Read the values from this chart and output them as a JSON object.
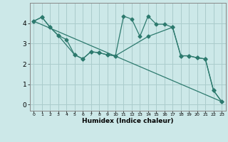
{
  "xlabel": "Humidex (Indice chaleur)",
  "background_color": "#cce8e8",
  "grid_color": "#aacccc",
  "line_color": "#2d7a6e",
  "xlim": [
    -0.5,
    23.5
  ],
  "ylim": [
    -0.3,
    5.0
  ],
  "xticks": [
    0,
    1,
    2,
    3,
    4,
    5,
    6,
    7,
    8,
    9,
    10,
    11,
    12,
    13,
    14,
    15,
    16,
    17,
    18,
    19,
    20,
    21,
    22,
    23
  ],
  "yticks": [
    0,
    1,
    2,
    3,
    4
  ],
  "series1_x": [
    0,
    1,
    2,
    3,
    4,
    5,
    6,
    7,
    8,
    9,
    10,
    11,
    12,
    13,
    14,
    15,
    16,
    17,
    18,
    19,
    20,
    21,
    22,
    23
  ],
  "series1_y": [
    4.1,
    4.3,
    3.8,
    3.4,
    3.2,
    2.45,
    2.25,
    2.6,
    2.55,
    2.45,
    2.4,
    4.35,
    4.2,
    3.35,
    4.35,
    3.95,
    3.95,
    3.8,
    2.4,
    2.4,
    2.3,
    2.25,
    0.7,
    0.15
  ],
  "series2_x": [
    0,
    1,
    2,
    3,
    5,
    6,
    7,
    8,
    9,
    10,
    14,
    17,
    18,
    19,
    20,
    21,
    22,
    23
  ],
  "series2_y": [
    4.1,
    4.3,
    3.8,
    3.4,
    2.45,
    2.25,
    2.6,
    2.55,
    2.45,
    2.4,
    3.35,
    3.8,
    2.4,
    2.4,
    2.3,
    2.25,
    0.7,
    0.15
  ],
  "series3_x": [
    0,
    23
  ],
  "series3_y": [
    4.1,
    0.15
  ]
}
